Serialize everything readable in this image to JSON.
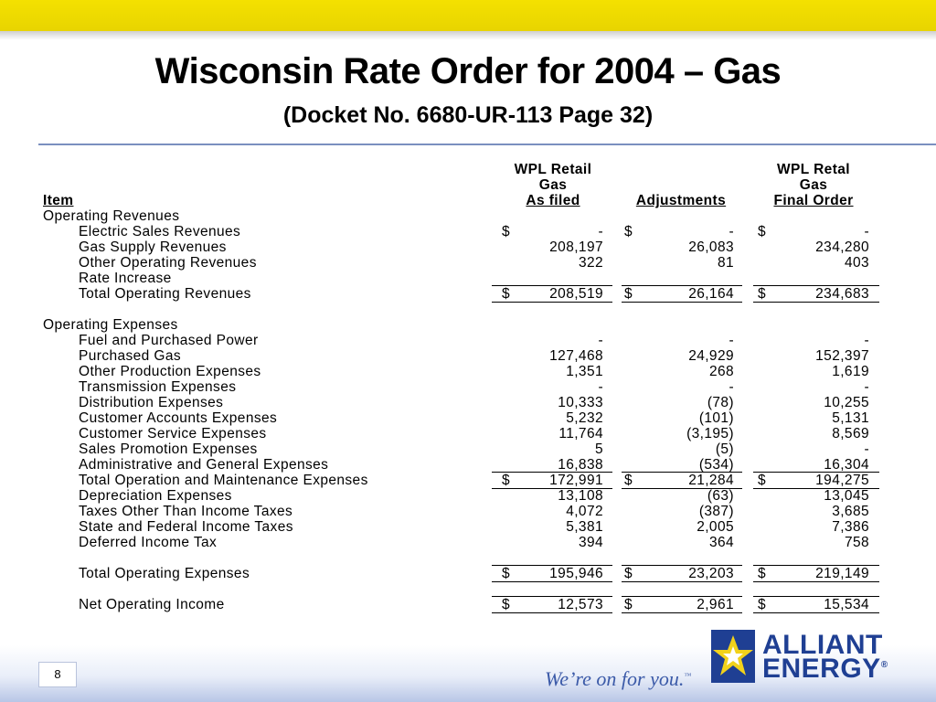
{
  "header": {
    "title": "Wisconsin Rate Order for 2004 – Gas",
    "subtitle": "(Docket No. 6680-UR-113 Page 32)"
  },
  "table": {
    "headers": {
      "item": "Item",
      "col1_line1": "WPL Retail",
      "col1_line2": "Gas",
      "col1_line3": "As filed",
      "col2_line3": "Adjustments",
      "col3_line1": "WPL Retal",
      "col3_line2": "Gas",
      "col3_line3": "Final Order"
    },
    "rows": [
      {
        "label": "Operating Revenues",
        "indent": false,
        "d1": "",
        "v1": "",
        "d2": "",
        "v2": "",
        "d3": "",
        "v3": ""
      },
      {
        "label": "Electric Sales Revenues",
        "indent": true,
        "d1": "$",
        "v1": "-",
        "d2": "$",
        "v2": "-",
        "d3": "$",
        "v3": "-"
      },
      {
        "label": "Gas Supply Revenues",
        "indent": true,
        "d1": "",
        "v1": "208,197",
        "d2": "",
        "v2": "26,083",
        "d3": "",
        "v3": "234,280"
      },
      {
        "label": "Other Operating Revenues",
        "indent": true,
        "d1": "",
        "v1": "322",
        "d2": "",
        "v2": "81",
        "d3": "",
        "v3": "403"
      },
      {
        "label": "Rate Increase",
        "indent": true,
        "d1": "",
        "v1": "",
        "d2": "",
        "v2": "",
        "d3": "",
        "v3": ""
      },
      {
        "label": "Total Operating Revenues",
        "indent": true,
        "d1": "$",
        "v1": "208,519",
        "d2": "$",
        "v2": "26,164",
        "d3": "$",
        "v3": "234,683"
      },
      {
        "label": "",
        "indent": false,
        "d1": "",
        "v1": "",
        "d2": "",
        "v2": "",
        "d3": "",
        "v3": ""
      },
      {
        "label": "Operating Expenses",
        "indent": false,
        "d1": "",
        "v1": "",
        "d2": "",
        "v2": "",
        "d3": "",
        "v3": ""
      },
      {
        "label": "Fuel and Purchased Power",
        "indent": true,
        "d1": "",
        "v1": "-",
        "d2": "",
        "v2": "-",
        "d3": "",
        "v3": "-"
      },
      {
        "label": "Purchased Gas",
        "indent": true,
        "d1": "",
        "v1": "127,468",
        "d2": "",
        "v2": "24,929",
        "d3": "",
        "v3": "152,397"
      },
      {
        "label": "Other Production Expenses",
        "indent": true,
        "d1": "",
        "v1": "1,351",
        "d2": "",
        "v2": "268",
        "d3": "",
        "v3": "1,619"
      },
      {
        "label": "Transmission Expenses",
        "indent": true,
        "d1": "",
        "v1": "-",
        "d2": "",
        "v2": "-",
        "d3": "",
        "v3": "-"
      },
      {
        "label": "Distribution Expenses",
        "indent": true,
        "d1": "",
        "v1": "10,333",
        "d2": "",
        "v2": "(78)",
        "d3": "",
        "v3": "10,255"
      },
      {
        "label": "Customer Accounts Expenses",
        "indent": true,
        "d1": "",
        "v1": "5,232",
        "d2": "",
        "v2": "(101)",
        "d3": "",
        "v3": "5,131"
      },
      {
        "label": "Customer Service Expenses",
        "indent": true,
        "d1": "",
        "v1": "11,764",
        "d2": "",
        "v2": "(3,195)",
        "d3": "",
        "v3": "8,569"
      },
      {
        "label": "Sales Promotion Expenses",
        "indent": true,
        "d1": "",
        "v1": "5",
        "d2": "",
        "v2": "(5)",
        "d3": "",
        "v3": "-"
      },
      {
        "label": "Administrative and General Expenses",
        "indent": true,
        "d1": "",
        "v1": "16,838",
        "d2": "",
        "v2": "(534)",
        "d3": "",
        "v3": "16,304"
      },
      {
        "label": "Total Operation and Maintenance Expenses",
        "indent": true,
        "d1": "$",
        "v1": "172,991",
        "d2": "$",
        "v2": "21,284",
        "d3": "$",
        "v3": "194,275"
      },
      {
        "label": "Depreciation Expenses",
        "indent": true,
        "d1": "",
        "v1": "13,108",
        "d2": "",
        "v2": "(63)",
        "d3": "",
        "v3": "13,045"
      },
      {
        "label": "Taxes Other Than Income Taxes",
        "indent": true,
        "d1": "",
        "v1": "4,072",
        "d2": "",
        "v2": "(387)",
        "d3": "",
        "v3": "3,685"
      },
      {
        "label": "State and Federal Income Taxes",
        "indent": true,
        "d1": "",
        "v1": "5,381",
        "d2": "",
        "v2": "2,005",
        "d3": "",
        "v3": "7,386"
      },
      {
        "label": "Deferred Income Tax",
        "indent": true,
        "d1": "",
        "v1": "394",
        "d2": "",
        "v2": "364",
        "d3": "",
        "v3": "758"
      },
      {
        "label": "",
        "indent": false,
        "d1": "",
        "v1": "",
        "d2": "",
        "v2": "",
        "d3": "",
        "v3": ""
      },
      {
        "label": "Total Operating Expenses",
        "indent": true,
        "d1": "$",
        "v1": "195,946",
        "d2": "$",
        "v2": "23,203",
        "d3": "$",
        "v3": "219,149"
      },
      {
        "label": "",
        "indent": false,
        "d1": "",
        "v1": "",
        "d2": "",
        "v2": "",
        "d3": "",
        "v3": ""
      },
      {
        "label": "Net Operating Income",
        "indent": true,
        "d1": "$",
        "v1": "12,573",
        "d2": "$",
        "v2": "2,961",
        "d3": "$",
        "v3": "15,534"
      }
    ]
  },
  "footer": {
    "page_number": "8",
    "tagline": "We’re on for you.",
    "tagline_tm": "™",
    "logo_line1": "ALLIANT",
    "logo_line2": "ENERGY",
    "logo_reg": "®"
  },
  "colors": {
    "top_bar": "#f4e100",
    "rule": "#7a8fbf",
    "brand_blue": "#1f3f93",
    "logo_yellow": "#f2d21b"
  }
}
